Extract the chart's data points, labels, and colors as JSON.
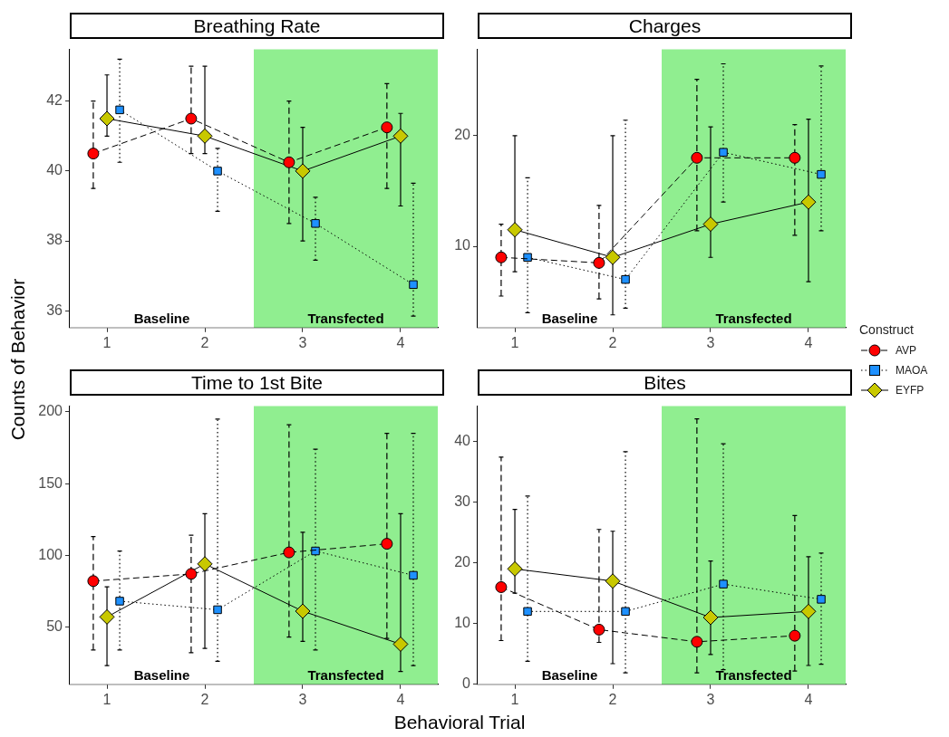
{
  "chart_data": [
    {
      "type": "line",
      "title": "Breathing Rate",
      "ylabel": "Counts of Behavior",
      "legend": "right",
      "legend_title": "Construct",
      "xlim": [
        0.62,
        4.38
      ],
      "xticks": [
        1,
        2,
        3,
        4
      ],
      "ylim": [
        35.52,
        43.48
      ],
      "yticks": [
        36,
        38,
        40,
        42
      ],
      "bands": [
        {
          "axis": "x",
          "from": 0.62,
          "to": 2.5,
          "label": "Baseline",
          "color": "#ffffff"
        },
        {
          "axis": "x",
          "from": 2.5,
          "to": 4.38,
          "label": "Transfected",
          "color": "#90ee90"
        }
      ],
      "series": [
        {
          "name": "AVP",
          "color": "#ff0000",
          "marker": "circle",
          "line_style": "dashed",
          "x": [
            0.86,
            1.86,
            2.86,
            3.86
          ],
          "values": [
            40.5,
            41.5,
            40.25,
            41.25
          ],
          "errors": [
            [
              39.5,
              42.0
            ],
            [
              40.5,
              43.0
            ],
            [
              38.5,
              42.0
            ],
            [
              39.5,
              42.5
            ]
          ]
        },
        {
          "name": "MAOA",
          "color": "#1e90ff",
          "marker": "square",
          "line_style": "dotted",
          "x": [
            1.13,
            2.13,
            3.13,
            4.13
          ],
          "values": [
            41.75,
            40.0,
            38.5,
            36.75
          ],
          "errors": [
            [
              40.25,
              43.2
            ],
            [
              38.85,
              40.65
            ],
            [
              37.45,
              39.25
            ],
            [
              35.85,
              39.65
            ]
          ]
        },
        {
          "name": "EYFP",
          "color": "#c8c800",
          "marker": "diamond",
          "line_style": "solid",
          "x": [
            1,
            2,
            3,
            4
          ],
          "values": [
            41.5,
            41.0,
            40.0,
            41.0
          ],
          "errors": [
            [
              41.0,
              42.75
            ],
            [
              40.5,
              43.0
            ],
            [
              38.0,
              41.25
            ],
            [
              39.0,
              41.65
            ]
          ]
        }
      ]
    },
    {
      "type": "line",
      "title": "Charges",
      "xlim": [
        0.62,
        4.38
      ],
      "xticks": [
        1,
        2,
        3,
        4
      ],
      "ylim": [
        2.65,
        27.8
      ],
      "yticks": [
        10,
        20
      ],
      "bands": [
        {
          "axis": "x",
          "from": 0.62,
          "to": 2.5,
          "label": "Baseline",
          "color": "#ffffff"
        },
        {
          "axis": "x",
          "from": 2.5,
          "to": 4.38,
          "label": "Transfected",
          "color": "#90ee90"
        }
      ],
      "series": [
        {
          "color": "#ff0000",
          "marker": "circle",
          "line_style": "dashed",
          "x": [
            0.86,
            1.86,
            2.86,
            3.86
          ],
          "values": [
            9,
            8.5,
            18,
            18
          ],
          "errors": [
            [
              5.5,
              12.0
            ],
            [
              5.25,
              13.7
            ],
            [
              11.4,
              25.1
            ],
            [
              11.0,
              21.0
            ]
          ]
        },
        {
          "color": "#1e90ff",
          "marker": "square",
          "line_style": "dotted",
          "x": [
            1.13,
            2.13,
            3.13,
            4.13
          ],
          "values": [
            9,
            7,
            18.5,
            16.5
          ],
          "errors": [
            [
              4.0,
              16.2
            ],
            [
              4.4,
              21.4
            ],
            [
              14.0,
              26.5
            ],
            [
              11.4,
              26.3
            ]
          ]
        },
        {
          "color": "#c8c800",
          "marker": "diamond",
          "line_style": "solid",
          "x": [
            1,
            2,
            3,
            4
          ],
          "values": [
            11.5,
            9,
            12,
            14
          ],
          "errors": [
            [
              7.7,
              20.0
            ],
            [
              3.8,
              20.0
            ],
            [
              9.0,
              20.8
            ],
            [
              6.8,
              21.5
            ]
          ]
        }
      ]
    },
    {
      "type": "line",
      "title": "Time to 1st Bite",
      "xlabel": "Behavioral Trial",
      "xlim": [
        0.62,
        4.38
      ],
      "xticks": [
        1,
        2,
        3,
        4
      ],
      "ylim": [
        10,
        204
      ],
      "yticks": [
        50,
        100,
        150,
        200
      ],
      "bands": [
        {
          "axis": "x",
          "from": 0.62,
          "to": 2.5,
          "label": "Baseline",
          "color": "#ffffff"
        },
        {
          "axis": "x",
          "from": 2.5,
          "to": 4.38,
          "label": "Transfected",
          "color": "#90ee90"
        }
      ],
      "series": [
        {
          "color": "#ff0000",
          "marker": "circle",
          "line_style": "dashed",
          "x": [
            0.86,
            1.86,
            2.86,
            3.86
          ],
          "values": [
            82,
            87,
            102,
            108
          ],
          "errors": [
            [
              34,
              113
            ],
            [
              32,
              114
            ],
            [
              43,
              191
            ],
            [
              42,
              185
            ]
          ]
        },
        {
          "color": "#1e90ff",
          "marker": "square",
          "line_style": "dotted",
          "x": [
            1.13,
            2.13,
            3.13,
            4.13
          ],
          "values": [
            68,
            62,
            103,
            86
          ],
          "errors": [
            [
              34,
              103
            ],
            [
              26,
              195
            ],
            [
              34,
              174
            ],
            [
              23,
              185
            ]
          ]
        },
        {
          "color": "#c8c800",
          "marker": "diamond",
          "line_style": "solid",
          "x": [
            1,
            2,
            3,
            4
          ],
          "values": [
            57,
            94,
            61,
            38
          ],
          "errors": [
            [
              23,
              78
            ],
            [
              35,
              129
            ],
            [
              40,
              116
            ],
            [
              19,
              129
            ]
          ]
        }
      ]
    },
    {
      "type": "line",
      "title": "Bites",
      "xlim": [
        0.62,
        4.38
      ],
      "xticks": [
        1,
        2,
        3,
        4
      ],
      "ylim": [
        0,
        45.8
      ],
      "yticks": [
        0,
        10,
        20,
        30,
        40
      ],
      "bands": [
        {
          "axis": "x",
          "from": 0.62,
          "to": 2.5,
          "label": "Baseline",
          "color": "#ffffff"
        },
        {
          "axis": "x",
          "from": 2.5,
          "to": 4.38,
          "label": "Transfected",
          "color": "#90ee90"
        }
      ],
      "series": [
        {
          "color": "#ff0000",
          "marker": "circle",
          "line_style": "dashed",
          "x": [
            0.86,
            1.86,
            2.86,
            3.86
          ],
          "values": [
            16,
            9,
            7,
            8
          ],
          "errors": [
            [
              7.2,
              37.4
            ],
            [
              6.9,
              25.5
            ],
            [
              1.9,
              43.7
            ],
            [
              2.2,
              27.8
            ]
          ]
        },
        {
          "color": "#1e90ff",
          "marker": "square",
          "line_style": "dotted",
          "x": [
            1.13,
            2.13,
            3.13,
            4.13
          ],
          "values": [
            12,
            12,
            16.5,
            14
          ],
          "errors": [
            [
              3.8,
              31.0
            ],
            [
              1.9,
              38.3
            ],
            [
              2.4,
              39.6
            ],
            [
              3.3,
              21.6
            ]
          ]
        },
        {
          "color": "#c8c800",
          "marker": "diamond",
          "line_style": "solid",
          "x": [
            1,
            2,
            3,
            4
          ],
          "values": [
            19,
            17,
            11,
            12
          ],
          "errors": [
            [
              15.0,
              28.8
            ],
            [
              3.4,
              25.2
            ],
            [
              4.9,
              20.3
            ],
            [
              3.1,
              21.0
            ]
          ]
        }
      ]
    }
  ]
}
